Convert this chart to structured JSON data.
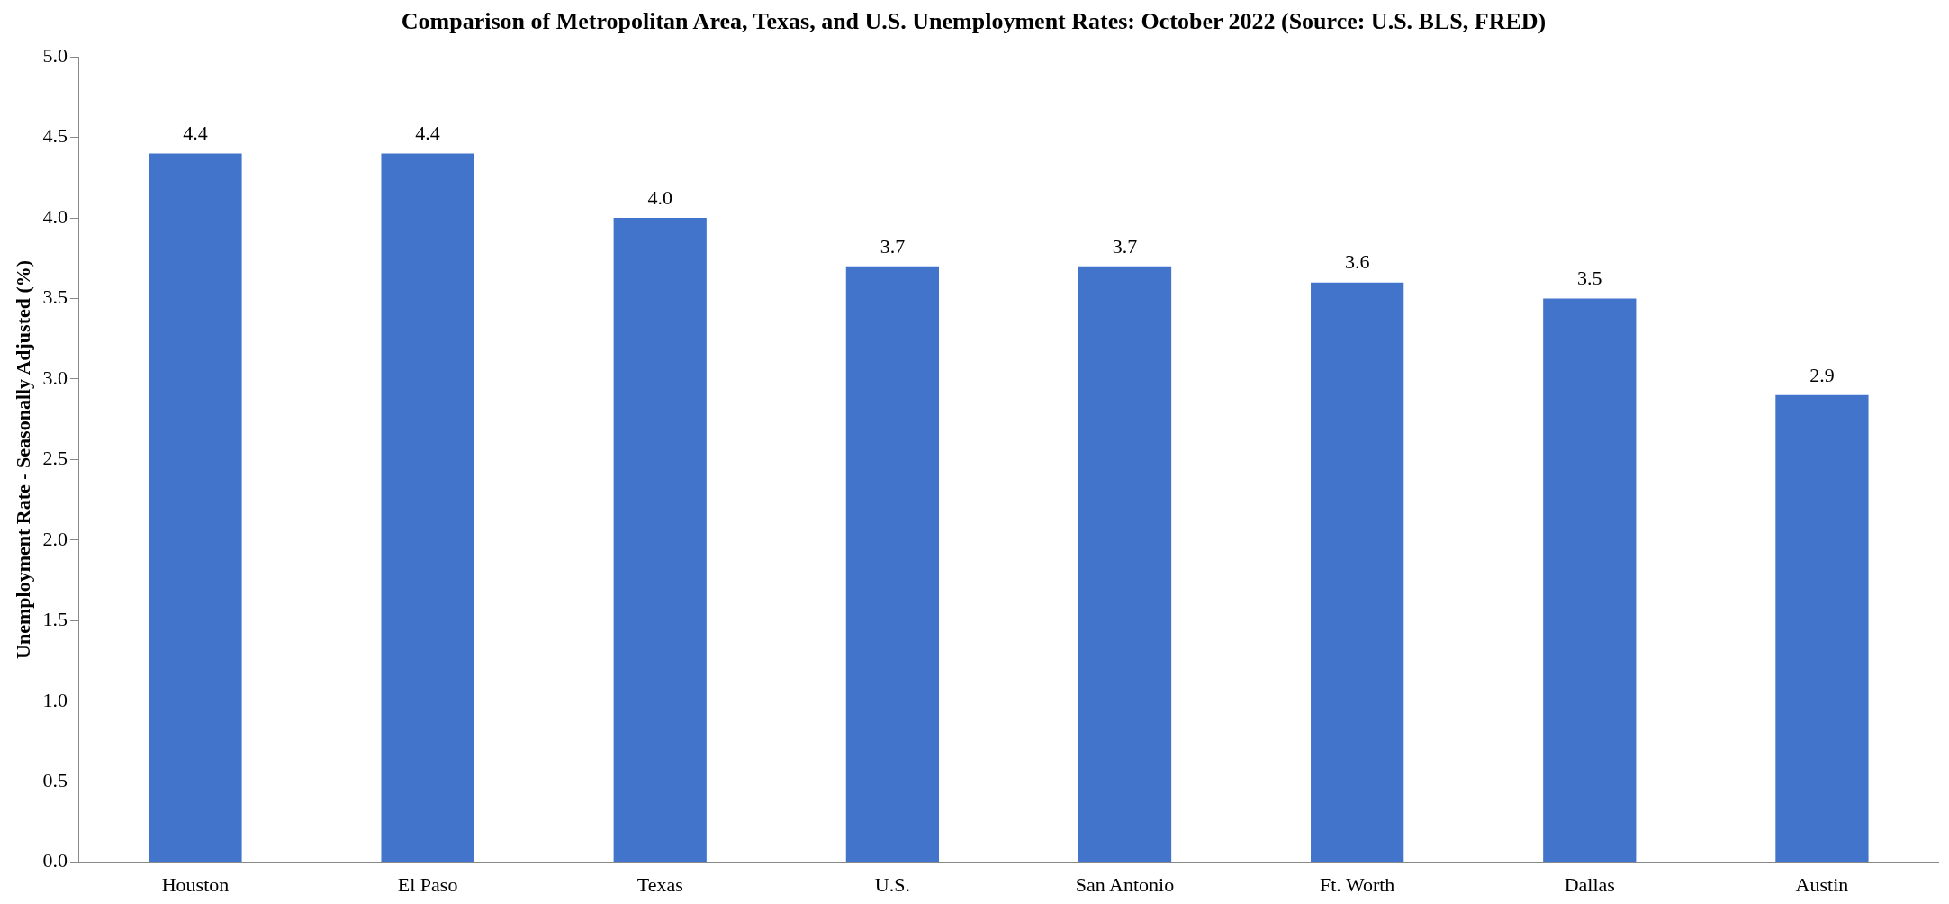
{
  "chart_data": {
    "type": "bar",
    "title": "Comparison of Metropolitan Area, Texas, and U.S. Unemployment Rates: October 2022 (Source: U.S. BLS, FRED)",
    "ylabel": "Unemployment Rate - Seasonally Adjusted (%)",
    "categories": [
      "Houston",
      "El Paso",
      "Texas",
      "U.S.",
      "San Antonio",
      "Ft. Worth",
      "Dallas",
      "Austin"
    ],
    "values": [
      4.4,
      4.4,
      4.0,
      3.7,
      3.7,
      3.6,
      3.5,
      2.9
    ],
    "color": "#4274cc",
    "ylim": [
      0,
      5
    ],
    "yticks": [
      {
        "value": 0,
        "label": "0.0"
      },
      {
        "value": 0.5,
        "label": "0.5"
      },
      {
        "value": 1,
        "label": "1.0"
      },
      {
        "value": 1.5,
        "label": "1.5"
      },
      {
        "value": 2,
        "label": "2.0"
      },
      {
        "value": 2.5,
        "label": "2.5"
      },
      {
        "value": 3,
        "label": "3.0"
      },
      {
        "value": 3.5,
        "label": "3.5"
      },
      {
        "value": 4,
        "label": "4.0"
      },
      {
        "value": 4.5,
        "label": "4.5"
      },
      {
        "value": 5,
        "label": "5.0"
      }
    ],
    "value_labels": [
      "4.4",
      "4.4",
      "4.0",
      "3.7",
      "3.7",
      "3.6",
      "3.5",
      "2.9"
    ],
    "grid": false,
    "legend": false
  }
}
